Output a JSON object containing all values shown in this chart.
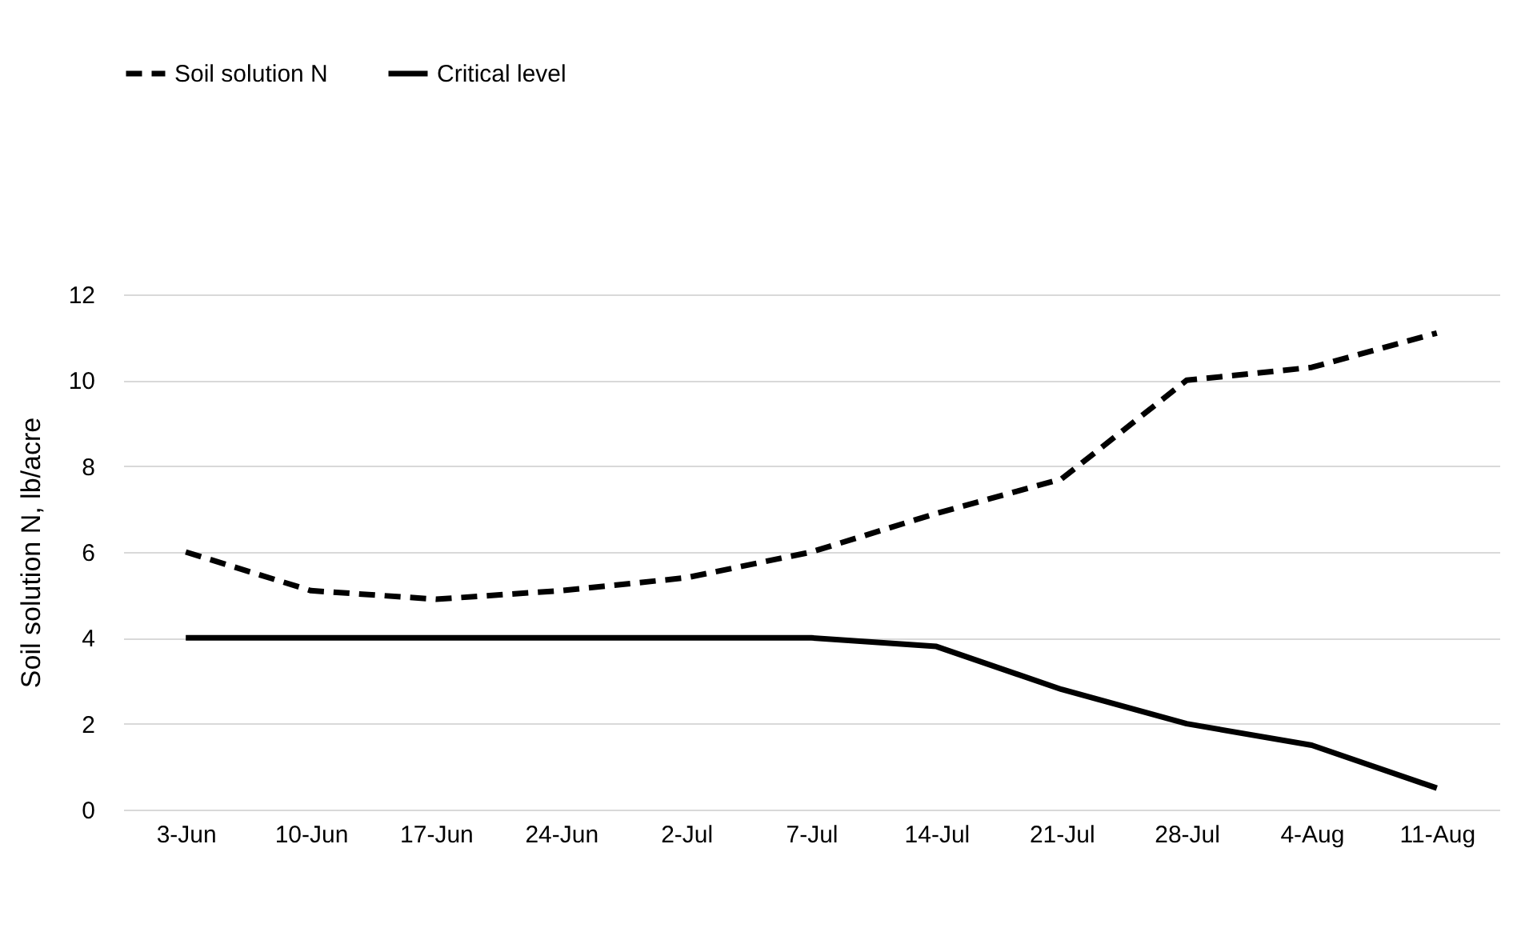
{
  "chart_data": {
    "type": "line",
    "ylabel": "Soil solution N, lb/acre",
    "categories": [
      "3-Jun",
      "10-Jun",
      "17-Jun",
      "24-Jun",
      "2-Jul",
      "7-Jul",
      "14-Jul",
      "21-Jul",
      "28-Jul",
      "4-Aug",
      "11-Aug"
    ],
    "series": [
      {
        "name": "Soil solution N",
        "color": "#000000",
        "line_style": "dashed",
        "values": [
          6.0,
          5.1,
          4.9,
          5.1,
          5.4,
          6.0,
          6.9,
          7.7,
          10.0,
          10.3,
          11.1
        ]
      },
      {
        "name": "Critical level",
        "color": "#000000",
        "line_style": "solid",
        "values": [
          4.0,
          4.0,
          4.0,
          4.0,
          4.0,
          4.0,
          3.8,
          2.8,
          2.0,
          1.5,
          0.5
        ]
      }
    ],
    "ylim": [
      0,
      12
    ],
    "yticks": [
      0,
      2,
      4,
      6,
      8,
      10,
      12
    ],
    "grid": "y",
    "legend": "top",
    "marker": "none"
  }
}
